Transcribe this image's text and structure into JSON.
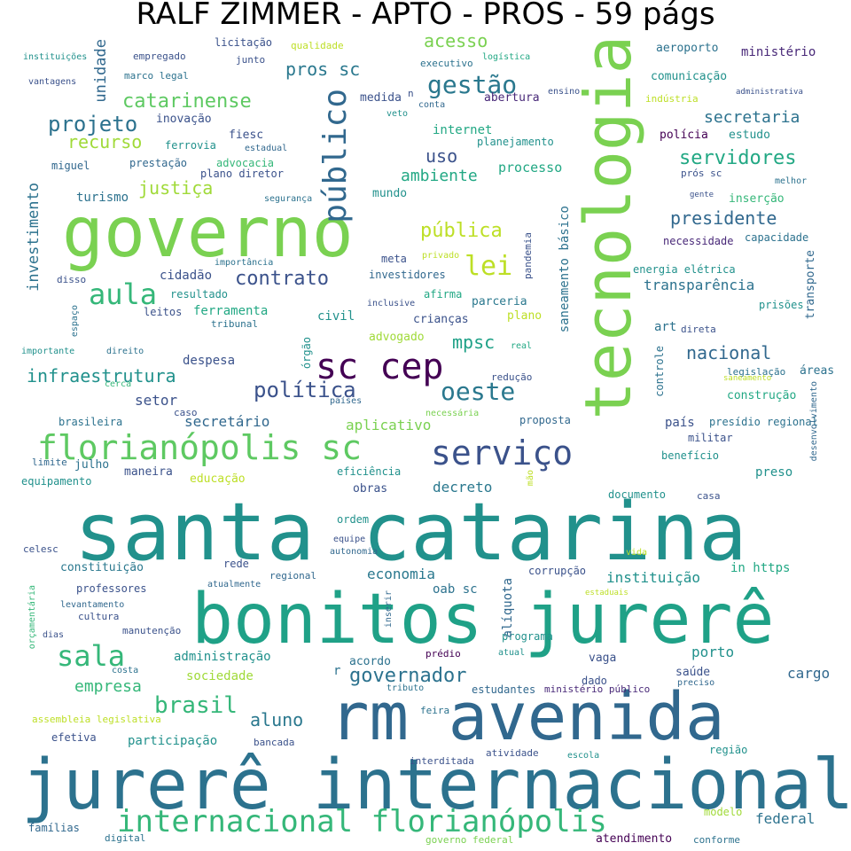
{
  "title": "RALF ZIMMER - APTO - PROS - 59 págs",
  "words": [
    {
      "text": "santa catarina",
      "color": "#21918c"
    },
    {
      "text": "bonitos jurerê",
      "color": "#1fa187"
    },
    {
      "text": "jurerê internacional",
      "color": "#2c728e"
    },
    {
      "text": "rm avenida",
      "color": "#31688e"
    },
    {
      "text": "governo",
      "color": "#7ad151"
    },
    {
      "text": "tecnologia",
      "color": "#7ad151"
    },
    {
      "text": "florianópolis sc",
      "color": "#5ec962"
    },
    {
      "text": "sc cep",
      "color": "#440154"
    },
    {
      "text": "internacional florianópolis",
      "color": "#35b779"
    },
    {
      "text": "serviço",
      "color": "#3b528b"
    },
    {
      "text": "público",
      "color": "#31688e"
    },
    {
      "text": "aula",
      "color": "#35b779"
    },
    {
      "text": "sala",
      "color": "#35b779"
    },
    {
      "text": "lei",
      "color": "#bddf26"
    },
    {
      "text": "oeste",
      "color": "#2a788e"
    },
    {
      "text": "gestão",
      "color": "#2a788e"
    },
    {
      "text": "catarinense",
      "color": "#5ec962"
    },
    {
      "text": "governador",
      "color": "#2c728e"
    },
    {
      "text": "brasil",
      "color": "#35b779"
    },
    {
      "text": "política",
      "color": "#3b528b"
    },
    {
      "text": "projeto",
      "color": "#2c728e"
    },
    {
      "text": "servidores",
      "color": "#22a884"
    },
    {
      "text": "presidente",
      "color": "#31688e"
    },
    {
      "text": "contrato",
      "color": "#3b528b"
    },
    {
      "text": "pública",
      "color": "#bddf26"
    },
    {
      "text": "infraestrutura",
      "color": "#21918c"
    },
    {
      "text": "nacional",
      "color": "#31688e"
    },
    {
      "text": "justiça",
      "color": "#a0da39"
    },
    {
      "text": "aluno",
      "color": "#2a788e"
    },
    {
      "text": "acesso",
      "color": "#7ad151"
    },
    {
      "text": "secretaria",
      "color": "#2c728e"
    },
    {
      "text": "pros sc",
      "color": "#2a788e"
    },
    {
      "text": "recurso",
      "color": "#a0da39"
    },
    {
      "text": "empresa",
      "color": "#35b779"
    },
    {
      "text": "uso",
      "color": "#3b528b"
    },
    {
      "text": "mpsc",
      "color": "#1fa187"
    },
    {
      "text": "ambiente",
      "color": "#22a884"
    },
    {
      "text": "transparência",
      "color": "#2c728e"
    },
    {
      "text": "decreto",
      "color": "#2a788e"
    },
    {
      "text": "aplicativo",
      "color": "#7ad151"
    },
    {
      "text": "economia",
      "color": "#2a788e"
    },
    {
      "text": "instituição",
      "color": "#21918c"
    },
    {
      "text": "secretário",
      "color": "#31688e"
    },
    {
      "text": "setor",
      "color": "#3b528b"
    },
    {
      "text": "processo",
      "color": "#22a884"
    },
    {
      "text": "porto",
      "color": "#21918c"
    },
    {
      "text": "cargo",
      "color": "#31688e"
    },
    {
      "text": "despesa",
      "color": "#3b528b"
    },
    {
      "text": "sociedade",
      "color": "#a0da39"
    },
    {
      "text": "administração",
      "color": "#21918c"
    },
    {
      "text": "federal",
      "color": "#2c728e"
    },
    {
      "text": "participação",
      "color": "#21918c"
    },
    {
      "text": "ferramenta",
      "color": "#22a884"
    },
    {
      "text": "cidadão",
      "color": "#3b528b"
    },
    {
      "text": "internet",
      "color": "#22a884"
    },
    {
      "text": "turismo",
      "color": "#2c728e"
    },
    {
      "text": "inovação",
      "color": "#3b528b"
    },
    {
      "text": "ministério",
      "color": "#482878"
    },
    {
      "text": "comunicação",
      "color": "#21918c"
    },
    {
      "text": "aeroporto",
      "color": "#2c728e"
    },
    {
      "text": "medida",
      "color": "#3b528b"
    },
    {
      "text": "abertura",
      "color": "#482878"
    },
    {
      "text": "planejamento",
      "color": "#21918c"
    },
    {
      "text": "polícia",
      "color": "#440154"
    },
    {
      "text": "estudo",
      "color": "#21918c"
    },
    {
      "text": "fiesc",
      "color": "#3b528b"
    },
    {
      "text": "ferrovia",
      "color": "#21918c"
    },
    {
      "text": "advocacia",
      "color": "#35b779"
    },
    {
      "text": "prestação",
      "color": "#31688e"
    },
    {
      "text": "miguel",
      "color": "#31688e"
    },
    {
      "text": "estadual",
      "color": "#31688e"
    },
    {
      "text": "plano diretor",
      "color": "#3b528b"
    },
    {
      "text": "mundo",
      "color": "#21918c"
    },
    {
      "text": "segurança",
      "color": "#2c728e"
    },
    {
      "text": "inserção",
      "color": "#35b779"
    },
    {
      "text": "necessidade",
      "color": "#482878"
    },
    {
      "text": "capacidade",
      "color": "#2c728e"
    },
    {
      "text": "energia elétrica",
      "color": "#21918c"
    },
    {
      "text": "investidores",
      "color": "#31688e"
    },
    {
      "text": "afirma",
      "color": "#22a884"
    },
    {
      "text": "parceria",
      "color": "#2a788e"
    },
    {
      "text": "crianças",
      "color": "#3b528b"
    },
    {
      "text": "plano",
      "color": "#bddf26"
    },
    {
      "text": "civil",
      "color": "#21918c"
    },
    {
      "text": "advogado",
      "color": "#a0da39"
    },
    {
      "text": "meta",
      "color": "#3b528b"
    },
    {
      "text": "resultado",
      "color": "#21918c"
    },
    {
      "text": "leitos",
      "color": "#3b528b"
    },
    {
      "text": "tribunal",
      "color": "#2c728e"
    },
    {
      "text": "art",
      "color": "#2c728e"
    },
    {
      "text": "direta",
      "color": "#3b528b"
    },
    {
      "text": "legislação",
      "color": "#2c728e"
    },
    {
      "text": "áreas",
      "color": "#2c728e"
    },
    {
      "text": "construção",
      "color": "#22a884"
    },
    {
      "text": "saneamento",
      "color": "#bddf26"
    },
    {
      "text": "país",
      "color": "#3b528b"
    },
    {
      "text": "presídio regional",
      "color": "#2c728e"
    },
    {
      "text": "militar",
      "color": "#3b528b"
    },
    {
      "text": "benefício",
      "color": "#21918c"
    },
    {
      "text": "preso",
      "color": "#21918c"
    },
    {
      "text": "documento",
      "color": "#21918c"
    },
    {
      "text": "casa",
      "color": "#3b528b"
    },
    {
      "text": "educação",
      "color": "#bddf26"
    },
    {
      "text": "eficiência",
      "color": "#21918c"
    },
    {
      "text": "obras",
      "color": "#3b528b"
    },
    {
      "text": "maneira",
      "color": "#3b528b"
    },
    {
      "text": "julho",
      "color": "#2c728e"
    },
    {
      "text": "equipamento",
      "color": "#21918c"
    },
    {
      "text": "limite",
      "color": "#31688e"
    },
    {
      "text": "brasileira",
      "color": "#2c728e"
    },
    {
      "text": "caso",
      "color": "#3b528b"
    },
    {
      "text": "necessária",
      "color": "#7ad151"
    },
    {
      "text": "proposta",
      "color": "#31688e"
    },
    {
      "text": "redução",
      "color": "#3b528b"
    },
    {
      "text": "países",
      "color": "#31688e"
    },
    {
      "text": "cerca",
      "color": "#35b779"
    },
    {
      "text": "direito",
      "color": "#2c728e"
    },
    {
      "text": "importante",
      "color": "#21918c"
    },
    {
      "text": "espaço",
      "color": "#2c728e"
    },
    {
      "text": "disso",
      "color": "#3b528b"
    },
    {
      "text": "importância",
      "color": "#2c728e"
    },
    {
      "text": "privado",
      "color": "#bddf26"
    },
    {
      "text": "inclusive",
      "color": "#3b528b"
    },
    {
      "text": "real",
      "color": "#22a884"
    },
    {
      "text": "ordem",
      "color": "#21918c"
    },
    {
      "text": "equipe",
      "color": "#3b528b"
    },
    {
      "text": "autonomia",
      "color": "#31688e"
    },
    {
      "text": "celesc",
      "color": "#3b528b"
    },
    {
      "text": "constituição",
      "color": "#2a788e"
    },
    {
      "text": "rede",
      "color": "#3b528b"
    },
    {
      "text": "regional",
      "color": "#31688e"
    },
    {
      "text": "oab sc",
      "color": "#2c728e"
    },
    {
      "text": "corrupção",
      "color": "#3b528b"
    },
    {
      "text": "in https",
      "color": "#22a884"
    },
    {
      "text": "vida",
      "color": "#bddf26"
    },
    {
      "text": "estaduais",
      "color": "#bddf26"
    },
    {
      "text": "professores",
      "color": "#3b528b"
    },
    {
      "text": "atualmente",
      "color": "#31688e"
    },
    {
      "text": "levantamento",
      "color": "#31688e"
    },
    {
      "text": "cultura",
      "color": "#3b528b"
    },
    {
      "text": "manutenção",
      "color": "#3b528b"
    },
    {
      "text": "dias",
      "color": "#3b528b"
    },
    {
      "text": "programa",
      "color": "#21918c"
    },
    {
      "text": "acordo",
      "color": "#2c728e"
    },
    {
      "text": "prédio",
      "color": "#440154"
    },
    {
      "text": "atual",
      "color": "#21918c"
    },
    {
      "text": "vaga",
      "color": "#3b528b"
    },
    {
      "text": "saúde",
      "color": "#3b528b"
    },
    {
      "text": "dado",
      "color": "#3b528b"
    },
    {
      "text": "costa",
      "color": "#2c728e"
    },
    {
      "text": "preciso",
      "color": "#31688e"
    },
    {
      "text": "estudantes",
      "color": "#31688e"
    },
    {
      "text": "ministério público",
      "color": "#482878"
    },
    {
      "text": "tributo",
      "color": "#2c728e"
    },
    {
      "text": "feira",
      "color": "#2c728e"
    },
    {
      "text": "assembleia legislativa",
      "color": "#bddf26"
    },
    {
      "text": "efetiva",
      "color": "#3b528b"
    },
    {
      "text": "bancada",
      "color": "#3b528b"
    },
    {
      "text": "região",
      "color": "#21918c"
    },
    {
      "text": "atividade",
      "color": "#3b528b"
    },
    {
      "text": "escola",
      "color": "#21918c"
    },
    {
      "text": "interditada",
      "color": "#3b528b"
    },
    {
      "text": "modelo",
      "color": "#a0da39"
    },
    {
      "text": "famílias",
      "color": "#31688e"
    },
    {
      "text": "digital",
      "color": "#2c728e"
    },
    {
      "text": "governo federal",
      "color": "#7ad151"
    },
    {
      "text": "atendimento",
      "color": "#440154"
    },
    {
      "text": "conforme",
      "color": "#2c728e"
    },
    {
      "text": "instituições",
      "color": "#21918c"
    },
    {
      "text": "empregado",
      "color": "#3b528b"
    },
    {
      "text": "licitação",
      "color": "#3b528b"
    },
    {
      "text": "qualidade",
      "color": "#bddf26"
    },
    {
      "text": "junto",
      "color": "#3b528b"
    },
    {
      "text": "marco legal",
      "color": "#2c728e"
    },
    {
      "text": "vantagens",
      "color": "#3b528b"
    },
    {
      "text": "executivo",
      "color": "#2c728e"
    },
    {
      "text": "logística",
      "color": "#22a884"
    },
    {
      "text": "ensino",
      "color": "#3b528b"
    },
    {
      "text": "indústria",
      "color": "#bddf26"
    },
    {
      "text": "administrativa",
      "color": "#3b528b"
    },
    {
      "text": "conta",
      "color": "#31688e"
    },
    {
      "text": "veto",
      "color": "#21918c"
    },
    {
      "text": "n",
      "color": "#3b528b"
    },
    {
      "text": "prós sc",
      "color": "#3b528b"
    },
    {
      "text": "melhor",
      "color": "#2c728e"
    },
    {
      "text": "gente",
      "color": "#3b528b"
    },
    {
      "text": "prisões",
      "color": "#21918c"
    },
    {
      "text": "r",
      "color": "#2c728e"
    },
    {
      "text": "unidade",
      "color": "#31688e"
    },
    {
      "text": "investimento",
      "color": "#2c728e"
    },
    {
      "text": "saneamento básico",
      "color": "#2c728e"
    },
    {
      "text": "pandemia",
      "color": "#3b528b"
    },
    {
      "text": "transporte",
      "color": "#31688e"
    },
    {
      "text": "controle",
      "color": "#2c728e"
    },
    {
      "text": "desenvolvimento",
      "color": "#31688e"
    },
    {
      "text": "órgão",
      "color": "#21918c"
    },
    {
      "text": "mão",
      "color": "#bddf26"
    },
    {
      "text": "alíquota",
      "color": "#31688e"
    },
    {
      "text": "inserir",
      "color": "#31688e"
    },
    {
      "text": "orçamentária",
      "color": "#35b779"
    }
  ]
}
